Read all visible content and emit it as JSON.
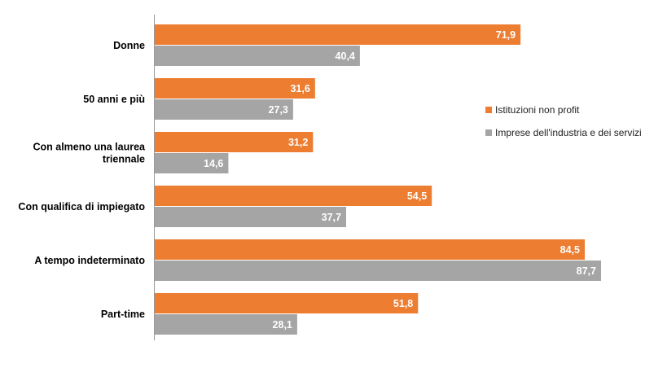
{
  "chart_data": {
    "type": "bar",
    "orientation": "horizontal",
    "categories": [
      "Donne",
      "50 anni e più",
      "Con almeno una laurea triennale",
      "Con qualifica di impiegato",
      "A tempo indeterminato",
      "Part-time"
    ],
    "category_lines": [
      [
        "Donne"
      ],
      [
        "50 anni e più"
      ],
      [
        "Con almeno una laurea",
        "triennale"
      ],
      [
        "Con qualifica di impiegato"
      ],
      [
        "A tempo indeterminato"
      ],
      [
        "Part-time"
      ]
    ],
    "series": [
      {
        "name": "Istituzioni non profit",
        "color": "#ED7D31",
        "values": [
          71.9,
          31.6,
          31.2,
          54.5,
          84.5,
          51.8
        ],
        "labels": [
          "71,9",
          "31,6",
          "31,2",
          "54,5",
          "84,5",
          "51,8"
        ]
      },
      {
        "name": "Imprese dell'industria e dei servizi",
        "color": "#A5A5A5",
        "values": [
          40.4,
          27.3,
          14.6,
          37.7,
          87.7,
          28.1
        ],
        "labels": [
          "40,4",
          "27,3",
          "14,6",
          "37,7",
          "87,7",
          "28,1"
        ]
      }
    ],
    "xlim": [
      0,
      100
    ],
    "grid": false,
    "legend_position": "right",
    "title": "",
    "xlabel": "",
    "ylabel": ""
  }
}
